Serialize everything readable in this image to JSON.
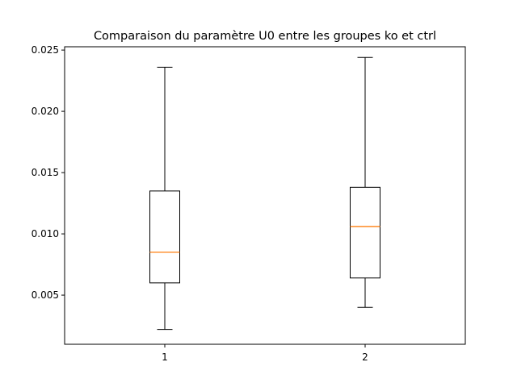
{
  "chart_data": {
    "type": "boxplot",
    "title": "Comparaison du paramètre U0 entre les groupes ko et ctrl",
    "xlabel": "",
    "ylabel": "",
    "categories": [
      "1",
      "2"
    ],
    "boxes": [
      {
        "whisker_low": 0.0022,
        "q1": 0.006,
        "median": 0.0085,
        "q3": 0.0135,
        "whisker_high": 0.0236
      },
      {
        "whisker_low": 0.004,
        "q1": 0.0064,
        "median": 0.0106,
        "q3": 0.0138,
        "whisker_high": 0.0244
      }
    ],
    "xlim": [
      0.5,
      2.5
    ],
    "ylim": [
      0.00099,
      0.02527
    ],
    "yticks": [
      0.005,
      0.01,
      0.015,
      0.02,
      0.025
    ],
    "ytick_labels": [
      "0.005",
      "0.010",
      "0.015",
      "0.020",
      "0.025"
    ],
    "grid": false,
    "colors": {
      "box": "#000000",
      "median": "#ff7f0e",
      "axes": "#000000",
      "background": "#ffffff"
    }
  }
}
